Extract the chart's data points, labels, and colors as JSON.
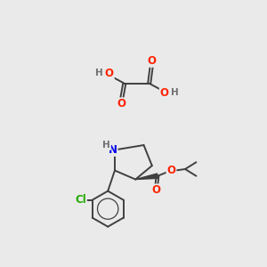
{
  "background_color": "#eaeaea",
  "fig_size": [
    3.0,
    3.0
  ],
  "dpi": 100,
  "atom_colors": {
    "O": "#ff2200",
    "N": "#0000ee",
    "Cl": "#22aa00",
    "C": "#404040",
    "H": "#707070"
  },
  "bond_color": "#404040",
  "bond_width": 1.4,
  "font_size_atom": 8.5,
  "font_size_h": 7.5
}
